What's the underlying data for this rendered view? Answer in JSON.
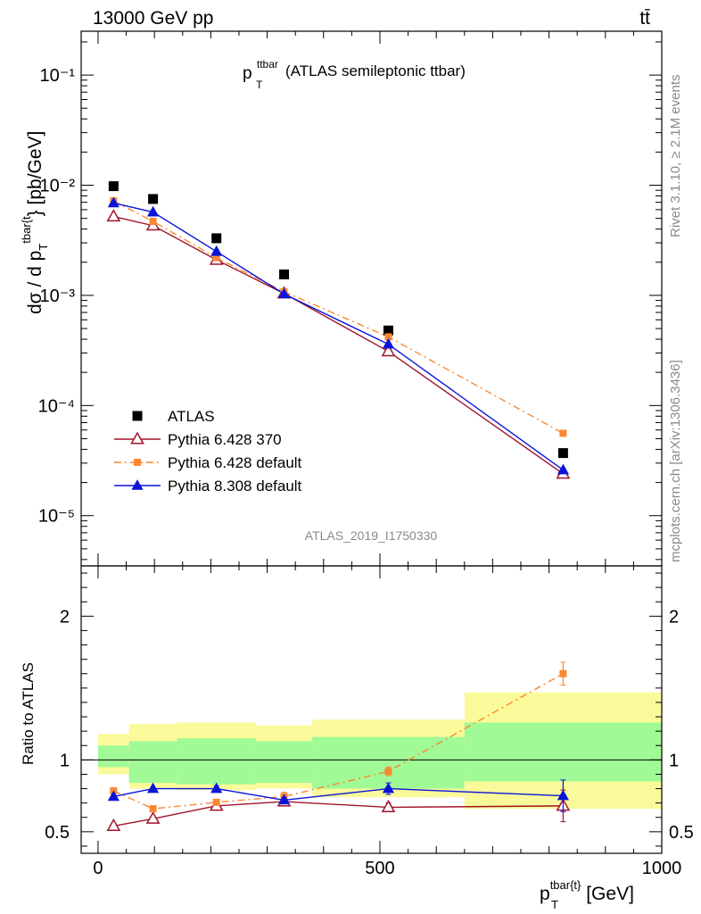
{
  "header": {
    "left": "13000 GeV pp",
    "right": "tt̄"
  },
  "side_text": {
    "rivet": "Rivet 3.1.10, ≥ 2.1M events",
    "mcplots": "mcplots.cern.ch [arXiv:1306.3436]"
  },
  "chart_data": {
    "type": "scatter",
    "title": {
      "base": "p",
      "sub": "T",
      "sup": "ttbar",
      "text": " (ATLAS semileptonic ttbar)"
    },
    "analysis_tag": "ATLAS_2019_I1750330",
    "ylabel": {
      "part1": "dσ / d p",
      "sub": "T",
      "sup": "tbar{t",
      "part2": "} [pb/GeV]"
    },
    "xlabel": {
      "base": "p",
      "sub": "T",
      "sup": "tbar{t}",
      "text": " [GeV]"
    },
    "ratio_ylabel": "Ratio to ATLAS",
    "xlim": [
      -30,
      1000
    ],
    "ylim": [
      3.5e-06,
      0.25
    ],
    "yscale": "log",
    "ratio_ylim": [
      0.35,
      2.35
    ],
    "x_ticks": [
      "0",
      "500",
      "1000"
    ],
    "y_ticks": [
      "10⁻¹",
      "10⁻²",
      "10⁻³",
      "10⁻⁴",
      "10⁻⁵"
    ],
    "ratio_ticks": [
      "0.5",
      "1",
      "2"
    ],
    "bins": [
      [
        0,
        55
      ],
      [
        55,
        140
      ],
      [
        140,
        280
      ],
      [
        280,
        380
      ],
      [
        380,
        650
      ],
      [
        650,
        1000
      ]
    ],
    "x": [
      27.5,
      97.5,
      210,
      330,
      515,
      825
    ],
    "series": [
      {
        "name": "ATLAS",
        "color": "#000000",
        "marker": "square",
        "values": [
          0.0098,
          0.0075,
          0.0033,
          0.00155,
          0.00048,
          3.7e-05
        ],
        "band_inner": [
          [
            0.95,
            1.1
          ],
          [
            0.84,
            1.13
          ],
          [
            0.83,
            1.15
          ],
          [
            0.84,
            1.13
          ],
          [
            0.8,
            1.16
          ],
          [
            0.85,
            1.26
          ]
        ],
        "band_outer": [
          [
            0.9,
            1.18
          ],
          [
            0.8,
            1.25
          ],
          [
            0.79,
            1.26
          ],
          [
            0.8,
            1.24
          ],
          [
            0.74,
            1.28
          ],
          [
            0.66,
            1.47
          ]
        ]
      },
      {
        "name": "Pythia 6.428 370",
        "color": "#a0132b",
        "marker": "open-triangle",
        "line": "solid",
        "values": [
          0.0052,
          0.0043,
          0.0021,
          0.00104,
          0.00031,
          2.4e-05
        ],
        "ratio": [
          0.54,
          0.59,
          0.68,
          0.71,
          0.67,
          0.68
        ],
        "ratio_err": [
          0,
          0,
          0,
          0,
          0.03,
          0.11
        ]
      },
      {
        "name": "Pythia 6.428 default",
        "color": "#f98833",
        "marker": "square",
        "line": "dashdot",
        "values": [
          0.0072,
          0.0047,
          0.0022,
          0.00108,
          0.00042,
          5.6e-05
        ],
        "ratio": [
          0.785,
          0.66,
          0.705,
          0.745,
          0.92,
          1.6
        ],
        "ratio_err": [
          0,
          0,
          0,
          0.03,
          0.03,
          0.08
        ]
      },
      {
        "name": "Pythia 8.308 default",
        "color": "#0a14d8",
        "marker": "filled-triangle",
        "line": "solid",
        "values": [
          0.0069,
          0.0057,
          0.0025,
          0.00103,
          0.00036,
          2.6e-05
        ],
        "ratio": [
          0.745,
          0.8,
          0.8,
          0.72,
          0.8,
          0.75
        ],
        "ratio_err": [
          0,
          0,
          0.02,
          0.02,
          0.04,
          0.11
        ]
      }
    ]
  }
}
